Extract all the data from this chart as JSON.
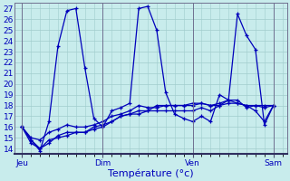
{
  "background_color": "#c8ecec",
  "plot_bg_color": "#c8ecec",
  "grid_color": "#a0cccc",
  "line_color": "#0000bb",
  "xlabel": "Température (°c)",
  "xlabel_fontsize": 8,
  "tick_fontsize": 6.5,
  "ylim": [
    13.5,
    27.5
  ],
  "yticks": [
    14,
    15,
    16,
    17,
    18,
    19,
    20,
    21,
    22,
    23,
    24,
    25,
    26,
    27
  ],
  "xtick_labels": [
    "Jeu",
    "Dim",
    "Ven",
    "Sam"
  ],
  "xtick_positions": [
    0,
    9,
    19,
    28
  ],
  "series_x": [
    [
      0,
      1,
      2,
      3,
      4,
      5,
      6,
      7,
      8,
      9,
      10,
      11,
      12,
      13,
      14,
      15,
      16,
      17,
      18,
      19,
      20,
      21,
      22,
      23,
      24,
      25,
      26,
      27,
      28
    ],
    [
      0,
      1,
      2,
      3,
      4,
      5,
      6,
      7,
      8,
      9,
      10,
      11,
      12,
      13,
      14,
      15,
      16,
      17,
      18,
      19,
      20,
      21,
      22,
      23,
      24,
      25,
      26,
      27,
      28
    ],
    [
      0,
      1,
      2,
      3,
      4,
      5,
      6,
      7,
      8,
      9,
      10,
      11,
      12,
      13,
      14,
      15,
      16,
      17,
      18,
      19,
      20,
      21,
      22,
      23,
      24,
      25,
      26,
      27,
      28
    ],
    [
      0,
      1,
      2,
      3,
      4,
      5,
      6,
      7,
      8,
      9,
      10,
      11,
      12,
      13,
      14,
      15,
      16,
      17,
      18,
      19,
      20,
      21,
      22,
      23,
      24,
      25,
      26,
      27,
      28
    ]
  ],
  "series_y": [
    [
      16.0,
      14.8,
      13.8,
      16.5,
      23.5,
      26.8,
      27.0,
      21.5,
      16.8,
      16.0,
      17.5,
      17.8,
      18.2,
      27.0,
      27.2,
      25.0,
      19.2,
      17.2,
      16.8,
      16.5,
      17.0,
      16.5,
      19.0,
      18.5,
      26.5,
      24.5,
      23.2,
      16.2,
      18.0
    ],
    [
      16.0,
      14.8,
      14.0,
      14.5,
      15.2,
      15.5,
      15.5,
      15.5,
      16.0,
      16.2,
      16.5,
      17.0,
      17.2,
      17.5,
      17.5,
      17.5,
      17.5,
      17.5,
      17.5,
      17.5,
      17.8,
      17.5,
      18.0,
      18.5,
      18.5,
      17.8,
      18.0,
      18.0,
      18.0
    ],
    [
      16.0,
      15.0,
      14.8,
      15.5,
      15.8,
      16.2,
      16.0,
      16.0,
      16.2,
      16.5,
      17.0,
      17.2,
      17.5,
      18.0,
      17.8,
      17.8,
      18.0,
      18.0,
      18.0,
      18.0,
      18.2,
      18.0,
      18.2,
      18.5,
      18.2,
      18.0,
      18.0,
      17.8,
      18.0
    ],
    [
      16.0,
      14.5,
      14.0,
      14.8,
      15.0,
      15.2,
      15.5,
      15.5,
      15.8,
      16.0,
      16.5,
      17.0,
      17.2,
      17.2,
      17.5,
      18.0,
      18.0,
      18.0,
      18.0,
      18.2,
      18.2,
      18.0,
      18.0,
      18.2,
      18.2,
      18.0,
      17.5,
      16.5,
      18.0
    ]
  ]
}
